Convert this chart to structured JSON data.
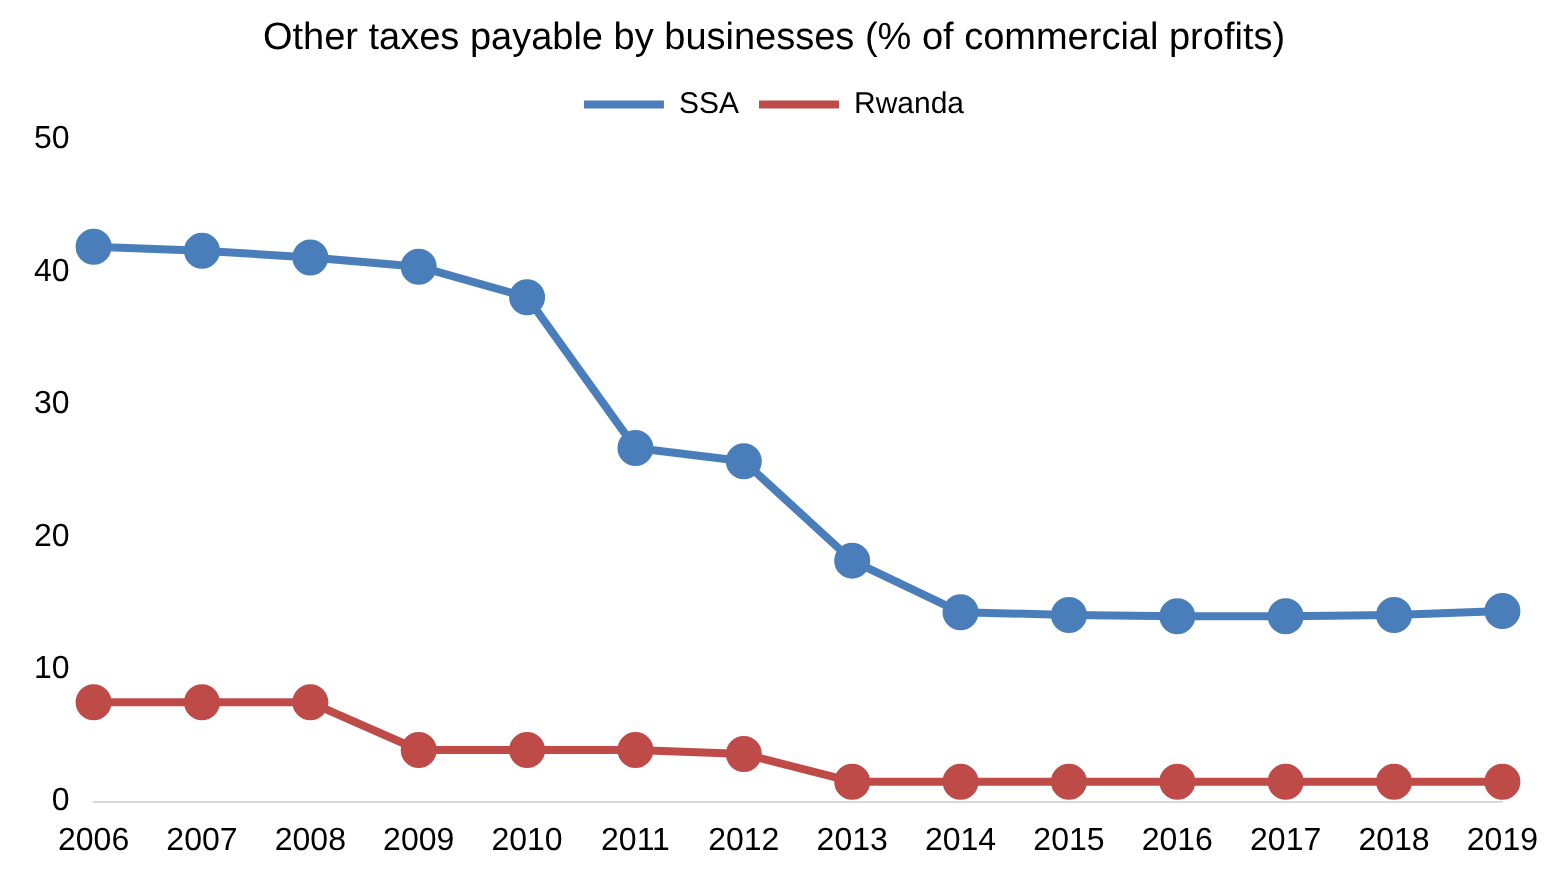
{
  "chart_data": {
    "type": "line",
    "title": "Other taxes payable by businesses (% of commercial profits)",
    "categories": [
      "2006",
      "2007",
      "2008",
      "2009",
      "2010",
      "2011",
      "2012",
      "2013",
      "2014",
      "2015",
      "2016",
      "2017",
      "2018",
      "2019"
    ],
    "series": [
      {
        "name": "SSA",
        "color": "#4a7ebb",
        "values": [
          41.9,
          41.6,
          41.1,
          40.4,
          38.1,
          26.7,
          25.7,
          18.2,
          14.3,
          14.1,
          14.0,
          14.0,
          14.1,
          14.4
        ]
      },
      {
        "name": "Rwanda",
        "color": "#be4b48",
        "values": [
          7.5,
          7.5,
          7.5,
          3.9,
          3.9,
          3.9,
          3.6,
          1.5,
          1.5,
          1.5,
          1.5,
          1.5,
          1.5,
          1.5
        ]
      }
    ],
    "ylim": [
      0,
      50
    ],
    "yticks": [
      0,
      10,
      20,
      30,
      40,
      50
    ],
    "grid": false,
    "legend": "top",
    "marker": "circle",
    "line_style": "solid"
  }
}
